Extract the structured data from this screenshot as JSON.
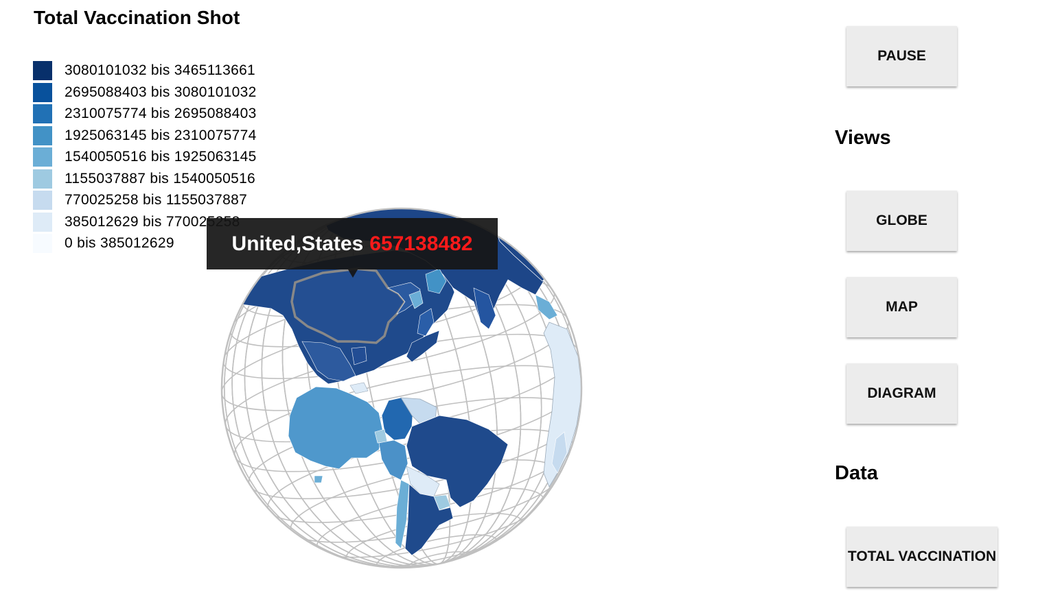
{
  "title": "Total Vaccination Shot",
  "legend": [
    {
      "label": "3080101032 bis 3465113661",
      "color": "#08306b"
    },
    {
      "label": "2695088403 bis 3080101032",
      "color": "#08519c"
    },
    {
      "label": "2310075774 bis 2695088403",
      "color": "#2171b5"
    },
    {
      "label": "1925063145 bis 2310075774",
      "color": "#4292c6"
    },
    {
      "label": "1540050516 bis 1925063145",
      "color": "#6baed6"
    },
    {
      "label": "1155037887 bis 1540050516",
      "color": "#9ecae1"
    },
    {
      "label": "770025258 bis 1155037887",
      "color": "#c6dbef"
    },
    {
      "label": "385012629 bis 770025258",
      "color": "#deebf7"
    },
    {
      "label": "0 bis 385012629",
      "color": "#f7fbff"
    }
  ],
  "tooltip": {
    "country": "United,States",
    "value": "657138482"
  },
  "buttons": {
    "pause": "PAUSE",
    "globe": "GLOBE",
    "map": "MAP",
    "diagram": "DIAGRAM",
    "total_vaccination": "TOTAL VACCINATION"
  },
  "sections": {
    "views": "Views",
    "data": "Data"
  },
  "colors": {
    "highlight_border": "#888888",
    "graticule": "#c0c0c0",
    "tooltip_value": "#ff1a1a"
  }
}
